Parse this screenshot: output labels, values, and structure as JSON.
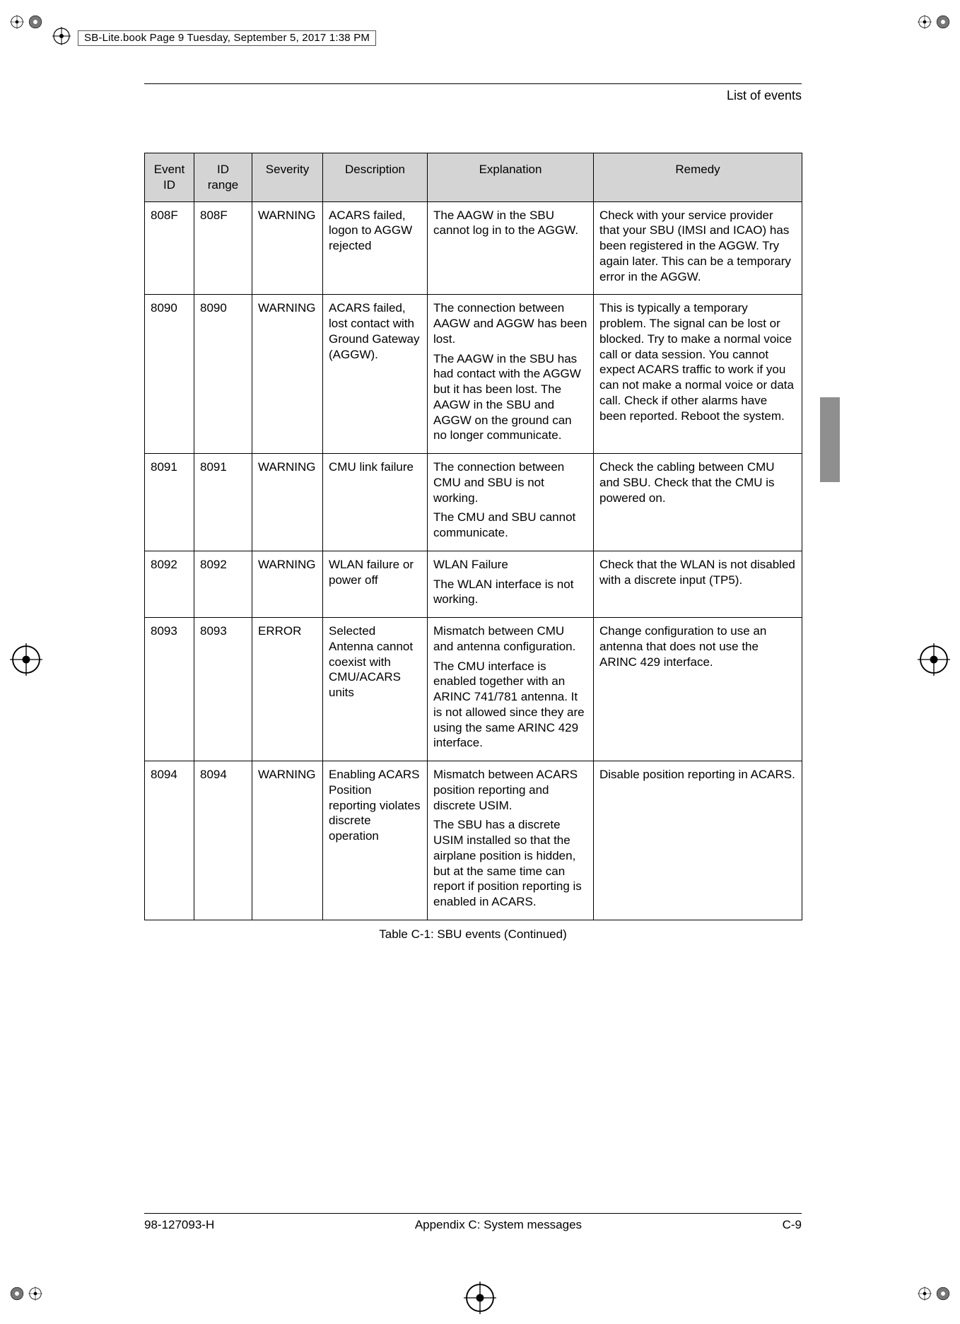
{
  "print_header": {
    "label": "SB-Lite.book  Page 9  Tuesday, September 5, 2017  1:38 PM"
  },
  "page": {
    "section_title": "List of events",
    "table_caption": "Table C-1: SBU events  (Continued)"
  },
  "footer": {
    "doc_number": "98-127093-H",
    "center": "Appendix C:  System messages",
    "page_number": "C-9"
  },
  "columns": [
    "Event ID",
    "ID range",
    "Severity",
    "Description",
    "Explanation",
    "Remedy"
  ],
  "rows": [
    {
      "event_id": "808F",
      "id_range": "808F",
      "severity": "WARNING",
      "description": "ACARS failed, logon to AGGW rejected",
      "explanation_paras": [
        "The AAGW in the SBU cannot log in to the AGGW."
      ],
      "remedy_paras": [
        "Check with your service provider that your SBU (IMSI and ICAO) has been registered in the AGGW. Try again later. This can be a temporary error in the AGGW."
      ]
    },
    {
      "event_id": "8090",
      "id_range": "8090",
      "severity": "WARNING",
      "description": "ACARS failed, lost contact with Ground Gateway (AGGW).",
      "explanation_paras": [
        "The connection between AAGW and AGGW has been lost.",
        "The AAGW in the SBU has had contact with the AGGW but it has been lost. The AAGW in the SBU and AGGW on the ground can no longer communicate."
      ],
      "remedy_paras": [
        "This is typically a temporary problem. The signal can be lost or blocked. Try to make a normal voice call or data session. You cannot expect ACARS traffic to work if you can not make a normal voice or data call. Check if other alarms have been reported. Reboot the system."
      ]
    },
    {
      "event_id": "8091",
      "id_range": "8091",
      "severity": "WARNING",
      "description": "CMU link failure",
      "explanation_paras": [
        "The connection between CMU and SBU is not working.",
        "The CMU and SBU cannot communicate."
      ],
      "remedy_paras": [
        "Check the cabling between CMU and SBU. Check that the CMU is powered on."
      ]
    },
    {
      "event_id": "8092",
      "id_range": "8092",
      "severity": "WARNING",
      "description": "WLAN failure or power off",
      "explanation_paras": [
        "WLAN Failure",
        "The WLAN interface is not working."
      ],
      "remedy_paras": [
        "Check that the WLAN is not disabled with a discrete input (TP5)."
      ]
    },
    {
      "event_id": "8093",
      "id_range": "8093",
      "severity": "ERROR",
      "description": "Selected Antenna cannot coexist with CMU/ACARS units",
      "explanation_paras": [
        "Mismatch between CMU and antenna configuration.",
        "The CMU interface is enabled together with an ARINC 741/781 antenna. It is not allowed since they are using the same ARINC 429 interface."
      ],
      "remedy_paras": [
        "Change configuration to use an antenna that does not use the ARINC 429 interface."
      ]
    },
    {
      "event_id": "8094",
      "id_range": "8094",
      "severity": "WARNING",
      "description": "Enabling ACARS Position reporting violates discrete operation",
      "explanation_paras": [
        "Mismatch between ACARS position reporting and discrete USIM.",
        "The SBU has a discrete USIM installed so that the airplane position is hidden, but at the same time can report if position reporting is enabled in ACARS."
      ],
      "remedy_paras": [
        "Disable position reporting in ACARS."
      ]
    }
  ],
  "style": {
    "header_bg": "#d4d4d4",
    "border_color": "#000000",
    "side_tab_color": "#8f8f8f",
    "font_size_body": 17,
    "font_size_header": 18
  }
}
